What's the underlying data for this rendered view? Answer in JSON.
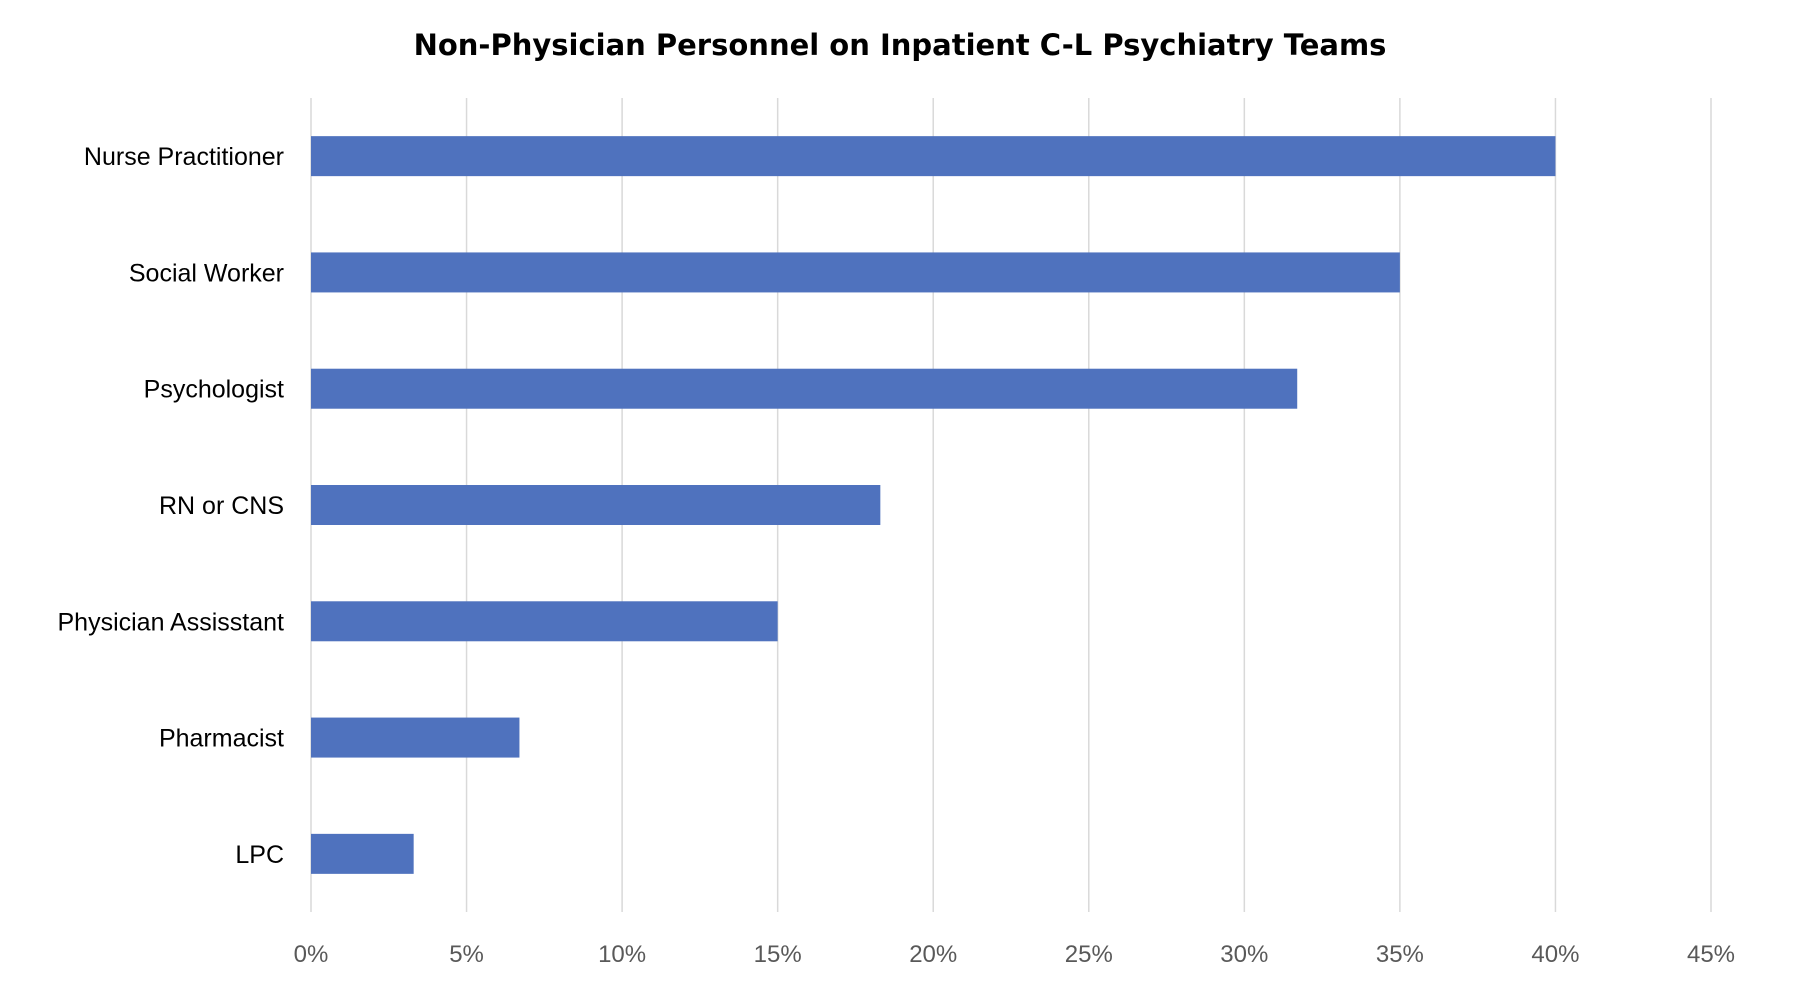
{
  "chart_data": {
    "type": "bar",
    "orientation": "horizontal",
    "title": "Non-Physician Personnel on Inpatient C-L Psychiatry Teams",
    "xlabel": "",
    "ylabel": "",
    "categories": [
      "Nurse Practitioner",
      "Social Worker",
      "Psychologist",
      "RN or CNS",
      "Physician Assisstant",
      "Pharmacist",
      "LPC"
    ],
    "values": [
      40.0,
      35.0,
      31.7,
      18.3,
      15.0,
      6.7,
      3.3
    ],
    "xlim": [
      0,
      45
    ],
    "x_ticks": [
      "0%",
      "5%",
      "10%",
      "15%",
      "20%",
      "25%",
      "30%",
      "35%",
      "40%",
      "45%"
    ],
    "x_tick_values": [
      0,
      5,
      10,
      15,
      20,
      25,
      30,
      35,
      40,
      45
    ],
    "grid": "vertical",
    "legend": "none",
    "bar_color": "#4F72BE",
    "grid_color": "#D9D9D9"
  }
}
